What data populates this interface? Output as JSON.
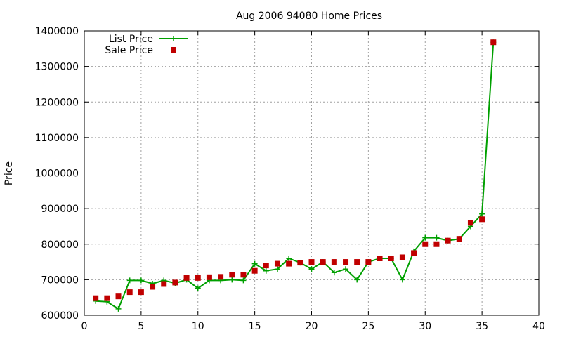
{
  "chart_data": {
    "type": "line",
    "title": "Aug 2006 94080 Home Prices",
    "xlabel": "",
    "ylabel": "Price",
    "xlim": [
      0,
      40
    ],
    "ylim": [
      600000,
      1400000
    ],
    "x_ticks": [
      0,
      5,
      10,
      15,
      20,
      25,
      30,
      35,
      40
    ],
    "y_ticks": [
      600000,
      700000,
      800000,
      900000,
      1000000,
      1100000,
      1200000,
      1300000,
      1400000
    ],
    "grid": true,
    "legend_position": "top-left",
    "series": [
      {
        "name": "List Price",
        "style": "line-with-plus-markers",
        "color": "#00a000",
        "x": [
          1,
          2,
          3,
          4,
          5,
          6,
          7,
          8,
          9,
          10,
          11,
          12,
          13,
          14,
          15,
          16,
          17,
          18,
          19,
          20,
          21,
          22,
          23,
          24,
          25,
          26,
          27,
          28,
          29,
          30,
          31,
          32,
          33,
          34,
          35,
          36
        ],
        "values": [
          640000,
          638000,
          618000,
          698000,
          698000,
          689000,
          698000,
          690000,
          700000,
          676000,
          698000,
          698000,
          700000,
          698000,
          745000,
          725000,
          730000,
          760000,
          748000,
          730000,
          750000,
          720000,
          730000,
          700000,
          750000,
          760000,
          760000,
          700000,
          780000,
          818000,
          818000,
          810000,
          815000,
          850000,
          885000,
          1368000
        ]
      },
      {
        "name": "Sale Price",
        "style": "square-markers",
        "color": "#c00000",
        "x": [
          1,
          2,
          3,
          4,
          5,
          6,
          7,
          8,
          9,
          10,
          11,
          12,
          13,
          14,
          15,
          16,
          17,
          18,
          19,
          20,
          21,
          22,
          23,
          24,
          25,
          26,
          27,
          28,
          29,
          30,
          31,
          32,
          33,
          34,
          35,
          36
        ],
        "values": [
          648000,
          648000,
          653000,
          665000,
          665000,
          680000,
          688000,
          692000,
          705000,
          705000,
          707000,
          708000,
          714000,
          714000,
          725000,
          740000,
          745000,
          745000,
          748000,
          750000,
          750000,
          750000,
          750000,
          750000,
          750000,
          760000,
          760000,
          763000,
          775000,
          800000,
          800000,
          810000,
          815000,
          860000,
          870000,
          1368000
        ]
      }
    ]
  }
}
